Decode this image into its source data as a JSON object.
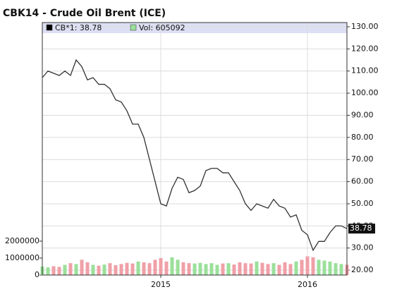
{
  "chart_data": {
    "type": "line",
    "title": "CBK14 - Crude Oil Brent (ICE)",
    "categories": [
      null,
      null,
      null,
      null,
      null,
      null,
      null,
      null,
      null,
      null,
      null,
      null,
      null,
      null,
      null,
      null,
      null,
      null,
      null,
      null,
      null,
      "2015",
      null,
      null,
      null,
      null,
      null,
      null,
      null,
      null,
      null,
      null,
      null,
      null,
      null,
      null,
      null,
      null,
      null,
      null,
      null,
      null,
      null,
      null,
      null,
      null,
      null,
      "2016",
      null,
      null,
      null,
      null,
      null,
      null,
      null
    ],
    "series": [
      {
        "name": "CB*1: 38.78",
        "color": "#333333",
        "axis": "y2",
        "values": [
          107,
          110,
          109,
          108,
          110,
          108,
          115,
          112,
          106,
          107,
          104,
          104,
          102,
          97,
          96,
          92,
          86,
          86,
          80,
          70,
          60,
          50,
          49,
          57,
          62,
          61,
          55,
          56,
          58,
          65,
          66,
          66,
          64,
          64,
          60,
          56,
          50,
          47,
          50,
          49,
          48,
          52,
          49,
          48,
          44,
          45,
          38,
          36,
          29,
          33,
          33,
          37,
          40,
          40,
          38.78
        ]
      },
      {
        "name": "Vol: 605092",
        "color": "#9be09b",
        "down_color": "#f0a0a8",
        "type": "bar",
        "values": [
          500000,
          450000,
          520000,
          480000,
          600000,
          700000,
          650000,
          900000,
          750000,
          600000,
          550000,
          620000,
          700000,
          580000,
          650000,
          720000,
          680000,
          800000,
          750000,
          700000,
          900000,
          1000000,
          800000,
          1050000,
          900000,
          750000,
          700000,
          680000,
          720000,
          650000,
          700000,
          600000,
          680000,
          700000,
          620000,
          750000,
          700000,
          680000,
          800000,
          720000,
          650000,
          700000,
          600000,
          750000,
          650000,
          800000,
          900000,
          1100000,
          1050000,
          900000,
          850000,
          800000,
          700000,
          650000,
          605092
        ]
      }
    ],
    "ylim": [
      0,
      14900000
    ],
    "yticks": [
      0,
      1000000,
      2000000
    ],
    "y2lim": [
      17.8,
      131.9
    ],
    "y2ticks": [
      {
        "value": 20,
        "label": "20.00"
      },
      {
        "value": 30,
        "label": "30.00"
      },
      {
        "value": 40,
        "label": "40.00"
      },
      {
        "value": 50,
        "label": "50.00"
      },
      {
        "value": 60,
        "label": "60.00"
      },
      {
        "value": 70,
        "label": "70.00"
      },
      {
        "value": 80,
        "label": "80.00"
      },
      {
        "value": 90,
        "label": "90.00"
      },
      {
        "value": 100,
        "label": "100.00"
      },
      {
        "value": 110,
        "label": "110.00"
      },
      {
        "value": 120,
        "label": "120.00"
      },
      {
        "value": 130,
        "label": "130.00"
      }
    ],
    "grid": true
  }
}
